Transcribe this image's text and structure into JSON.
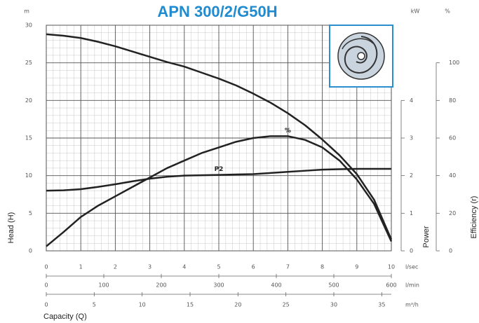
{
  "chart_data": {
    "type": "line",
    "title": "APN 300/2/G50H",
    "xlabel": "Capacity (Q)",
    "xunit": "l/sec",
    "ylabel": "Head (H)",
    "yunit": "m",
    "y2label": "Power",
    "y2unit": "kW",
    "y3label": "Efficiency (r)",
    "y3unit": "%",
    "x": [
      0,
      0.5,
      1,
      1.5,
      2,
      2.5,
      3,
      3.5,
      4,
      4.5,
      5,
      5.5,
      6,
      6.5,
      7,
      7.5,
      8,
      8.5,
      9,
      9.5,
      10
    ],
    "xlim": [
      0,
      10
    ],
    "xticks": [
      0,
      1,
      2,
      3,
      4,
      5,
      6,
      7,
      8,
      9,
      10
    ],
    "ylim": [
      0,
      30
    ],
    "yticks": [
      0,
      5,
      10,
      15,
      20,
      25,
      30
    ],
    "y2lim": [
      0,
      6
    ],
    "y2ticks": [
      0,
      1,
      2,
      3,
      4
    ],
    "y3lim": [
      0,
      120
    ],
    "y3ticks": [
      0,
      20,
      40,
      60,
      80,
      100
    ],
    "x_axes": [
      {
        "unit": "l/min",
        "xlim": [
          0,
          600
        ],
        "xticks": [
          0,
          100,
          200,
          300,
          400,
          500,
          600
        ]
      },
      {
        "unit": "m³/h",
        "xlim": [
          0,
          36
        ],
        "xticks": [
          0,
          5,
          10,
          15,
          20,
          25,
          30,
          35
        ]
      }
    ],
    "grid": true,
    "series": [
      {
        "color": "#222222",
        "axis": "y",
        "values": [
          28.8,
          28.6,
          28.3,
          27.8,
          27.2,
          26.5,
          25.8,
          25.1,
          24.5,
          23.7,
          22.9,
          22.0,
          20.9,
          19.7,
          18.3,
          16.7,
          14.8,
          12.7,
          10.2,
          6.8,
          1.5
        ]
      },
      {
        "name": "%",
        "color": "#222222",
        "axis": "y3",
        "values": [
          2.4,
          10,
          18,
          24,
          29,
          34,
          39,
          44,
          48,
          52,
          55,
          58,
          60,
          61,
          61,
          59,
          55,
          48,
          38,
          25,
          5
        ]
      },
      {
        "name": "P2",
        "color": "#222222",
        "axis": "y2",
        "values": [
          1.6,
          1.61,
          1.64,
          1.7,
          1.77,
          1.85,
          1.92,
          1.97,
          2.0,
          2.01,
          2.02,
          2.03,
          2.04,
          2.07,
          2.1,
          2.13,
          2.16,
          2.17,
          2.18,
          2.18,
          2.18
        ]
      }
    ]
  }
}
